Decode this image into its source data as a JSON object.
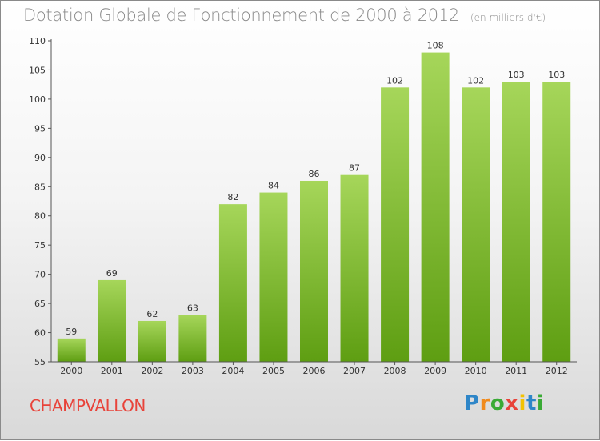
{
  "header": {
    "title": "Dotation Globale de Fonctionnement de 2000 à 2012",
    "unit": "(en milliers d'€)"
  },
  "commune": "CHAMPVALLON",
  "logo": {
    "text": "Proxiti",
    "letter_colors": [
      "#2e86c8",
      "#f08a1c",
      "#3aaa35",
      "#e8433a",
      "#f2c200",
      "#2e86c8",
      "#3aaa35"
    ]
  },
  "colors": {
    "bar_top": "#a6d65a",
    "bar_bottom": "#5e9e12",
    "axis": "#555555",
    "text": "#333333",
    "title": "#8a8a8a",
    "commune": "#e8433a"
  },
  "chart_data": {
    "type": "bar",
    "title": "Dotation Globale de Fonctionnement de 2000 à 2012",
    "subtitle": "(en milliers d'€)",
    "xlabel": "",
    "ylabel": "",
    "categories": [
      "2000",
      "2001",
      "2002",
      "2003",
      "2004",
      "2005",
      "2006",
      "2007",
      "2008",
      "2009",
      "2010",
      "2011",
      "2012"
    ],
    "values": [
      59,
      69,
      62,
      63,
      82,
      84,
      86,
      87,
      102,
      108,
      102,
      103,
      103
    ],
    "ylim": [
      55,
      110
    ],
    "yticks": [
      55,
      60,
      65,
      70,
      75,
      80,
      85,
      90,
      95,
      100,
      105,
      110
    ],
    "grid": false,
    "data_labels": true
  }
}
